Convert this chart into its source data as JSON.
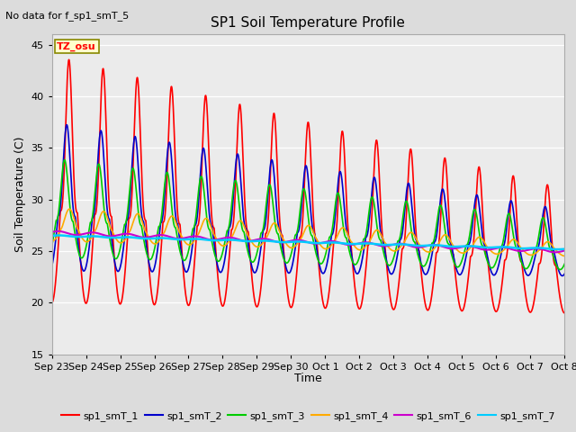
{
  "title": "SP1 Soil Temperature Profile",
  "xlabel": "Time",
  "ylabel": "Soil Temperature (C)",
  "note": "No data for f_sp1_smT_5",
  "tz_label": "TZ_osu",
  "ylim": [
    15,
    46
  ],
  "yticks": [
    15,
    20,
    25,
    30,
    35,
    40,
    45
  ],
  "xtick_labels": [
    "Sep 23",
    "Sep 24",
    "Sep 25",
    "Sep 26",
    "Sep 27",
    "Sep 28",
    "Sep 29",
    "Sep 30",
    "Oct 1",
    "Oct 2",
    "Oct 3",
    "Oct 4",
    "Oct 5",
    "Oct 6",
    "Oct 7",
    "Oct 8"
  ],
  "bg_color": "#dcdcdc",
  "plot_bg_color": "#ebebeb",
  "series_colors": {
    "sp1_smT_1": "#ff0000",
    "sp1_smT_2": "#0000cc",
    "sp1_smT_3": "#00cc00",
    "sp1_smT_4": "#ffaa00",
    "sp1_smT_6": "#cc00cc",
    "sp1_smT_7": "#00ccff"
  },
  "legend_entries": [
    "sp1_smT_1",
    "sp1_smT_2",
    "sp1_smT_3",
    "sp1_smT_4",
    "sp1_smT_6",
    "sp1_smT_7"
  ]
}
